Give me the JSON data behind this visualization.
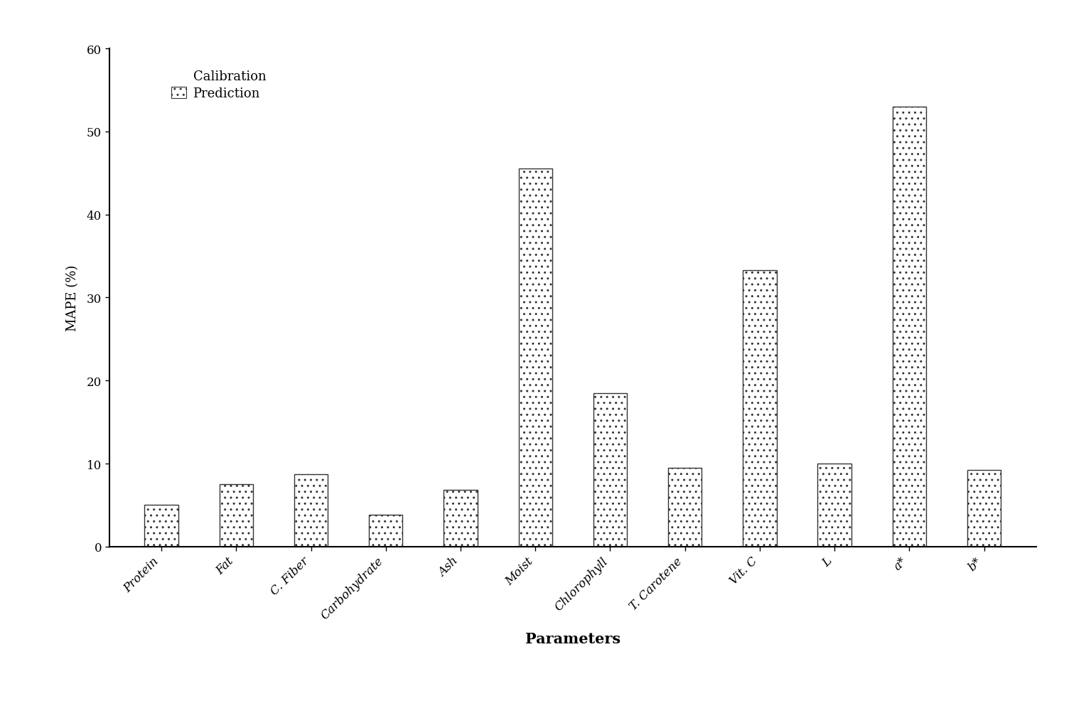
{
  "categories": [
    "Protein",
    "Fat",
    "C. Fiber",
    "Carbohydrate",
    "Ash",
    "Moist",
    "Chlorophyll",
    "T. Carotene",
    "Vit. C",
    "L",
    "a*",
    "b*"
  ],
  "prediction_values": [
    5.0,
    7.5,
    8.7,
    3.8,
    6.8,
    45.5,
    18.5,
    9.5,
    33.3,
    10.0,
    53.0,
    9.2
  ],
  "bar_color": "#ffffff",
  "bar_edge_color": "#333333",
  "title": "",
  "xlabel": "Parameters",
  "ylabel": "MAPE (%)",
  "ylim": [
    0,
    60
  ],
  "yticks": [
    0,
    10,
    20,
    30,
    40,
    50,
    60
  ],
  "legend_calibration": "Calibration",
  "legend_prediction": "Prediction",
  "bar_width": 0.45,
  "background_color": "#ffffff",
  "xlabel_fontsize": 15,
  "ylabel_fontsize": 13,
  "tick_fontsize": 12,
  "legend_fontsize": 13
}
